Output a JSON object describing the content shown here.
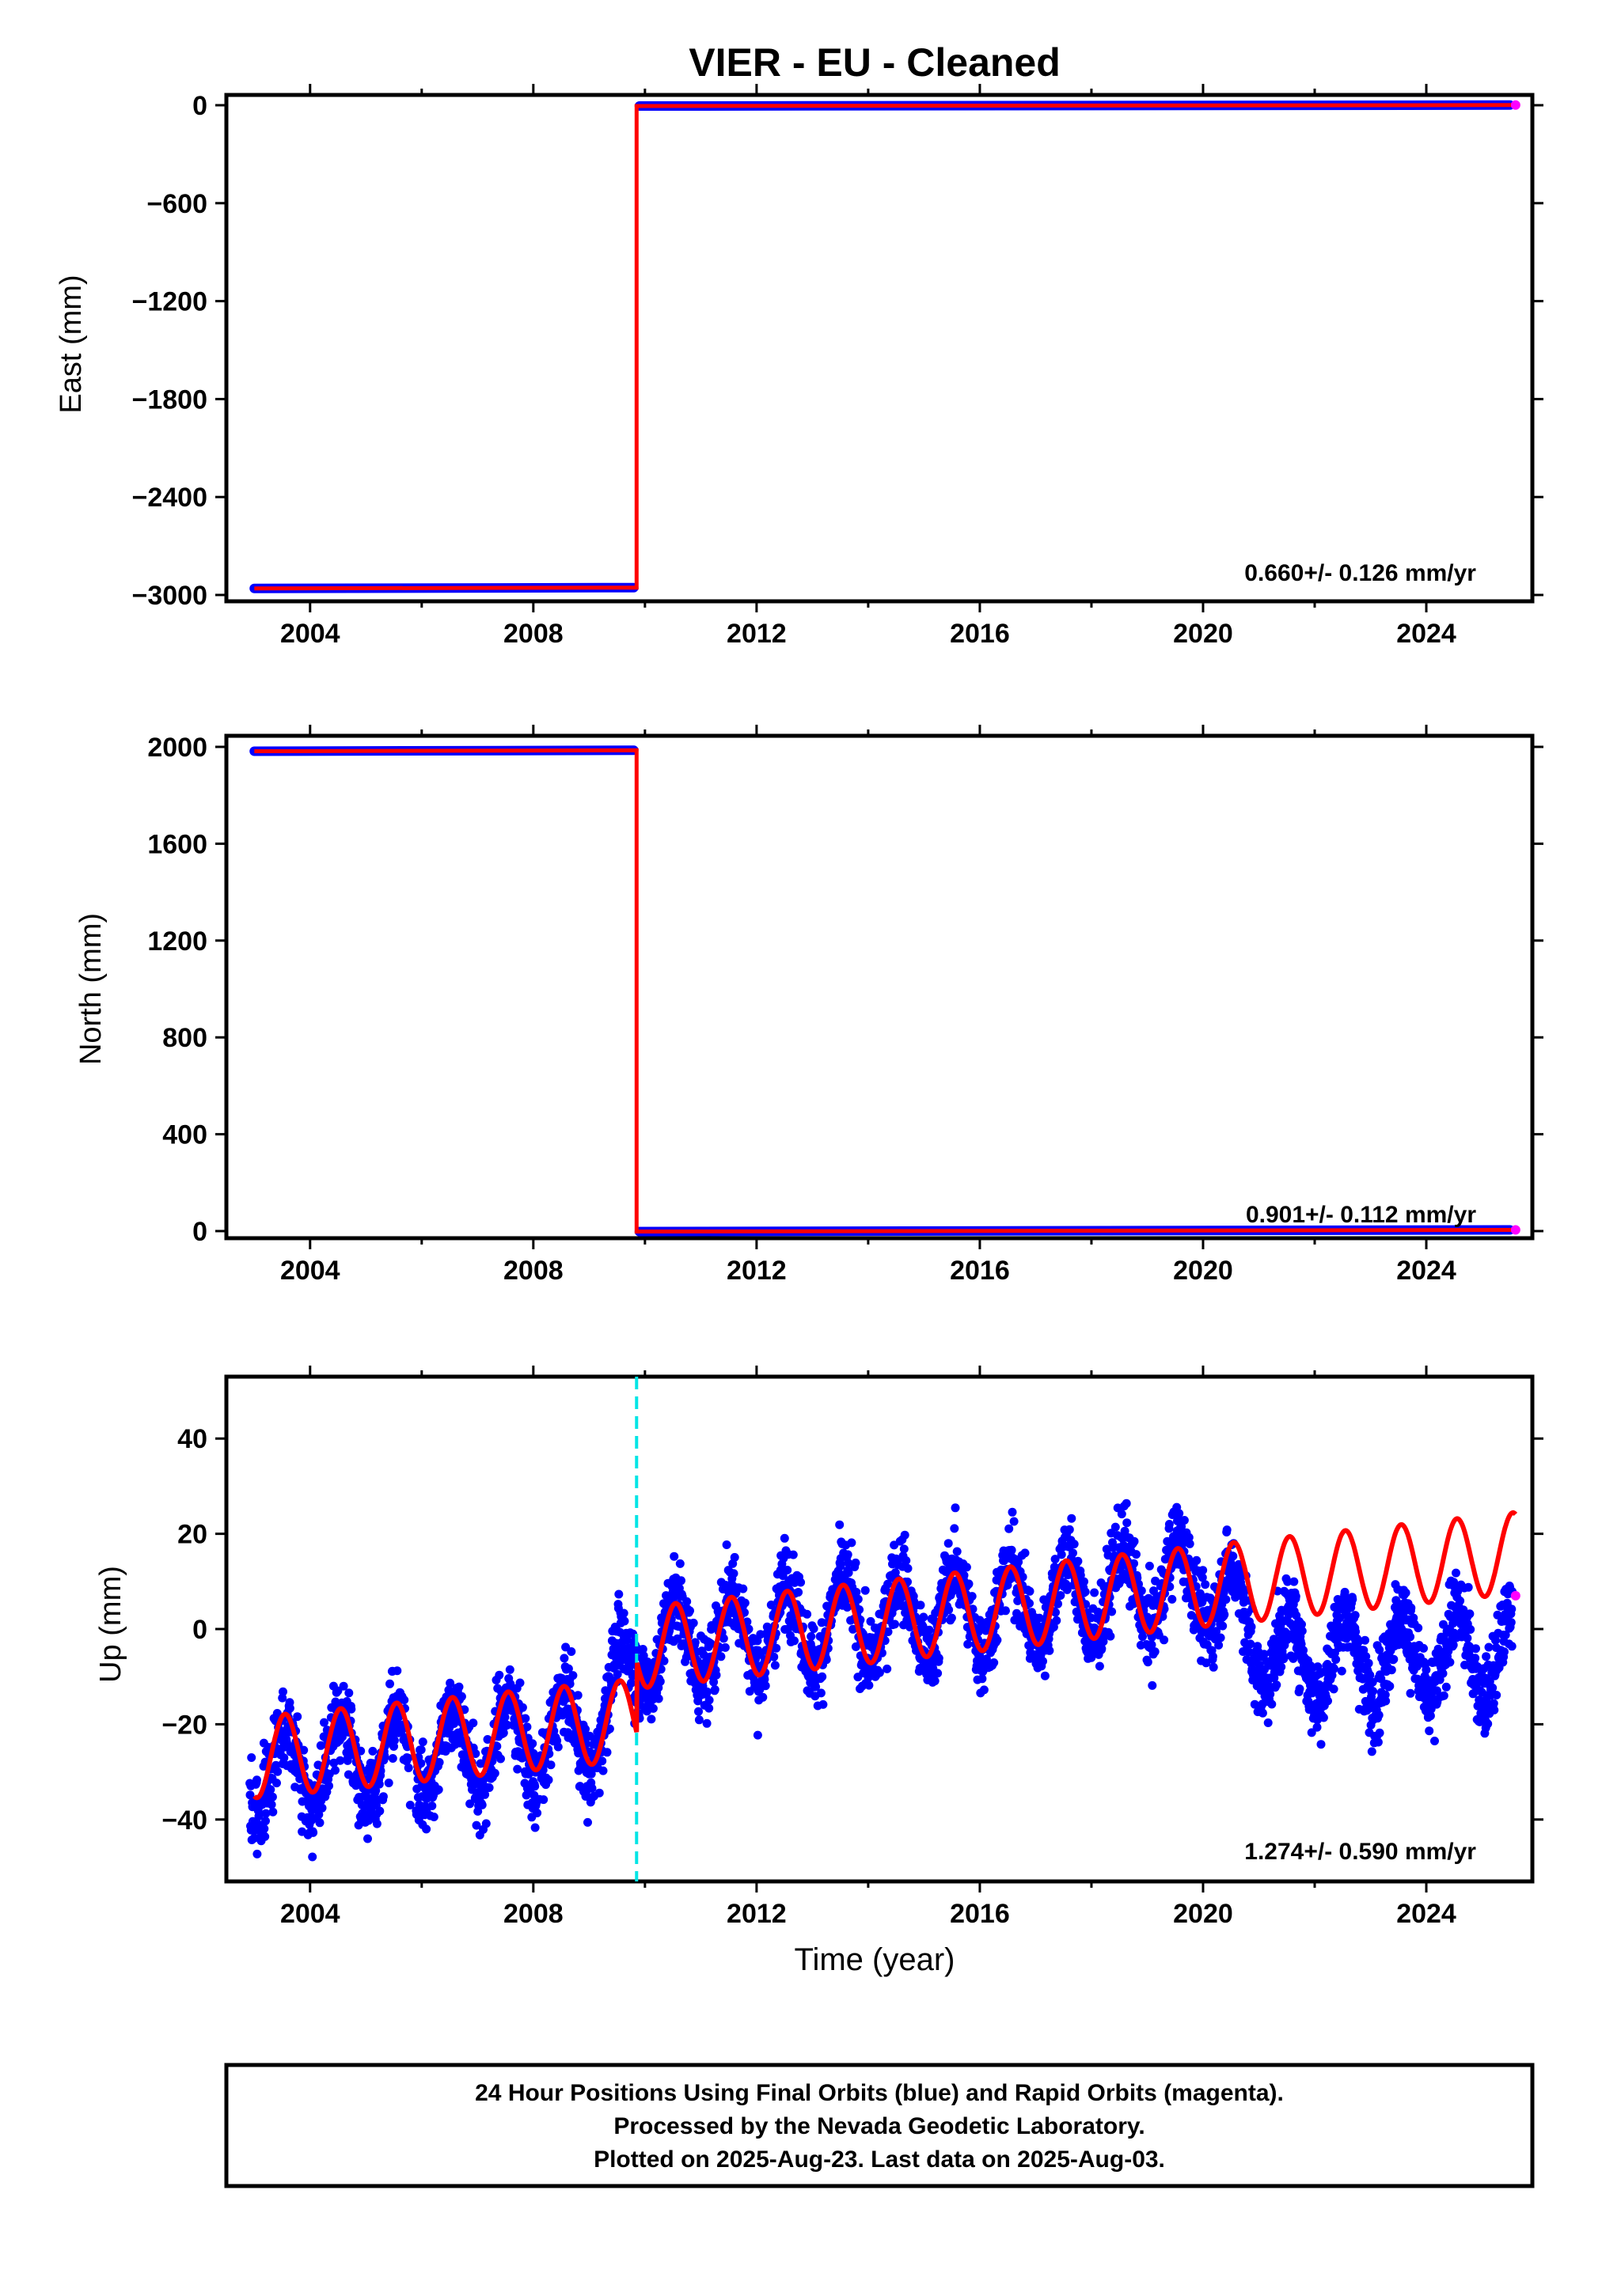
{
  "title": "VIER  - EU - Cleaned",
  "xaxis": {
    "label": "Time (year)",
    "ticks": [
      "2004",
      "2008",
      "2012",
      "2016",
      "2020",
      "2024"
    ],
    "range": [
      2002.5,
      2025.9
    ]
  },
  "colors": {
    "final": "#0000ff",
    "rapid": "#ff00ff",
    "model": "#ff0000",
    "step": "#00e5e5",
    "frame": "#000000"
  },
  "panels": [
    {
      "id": "east",
      "ylabel": "East (mm)",
      "ylim": [
        -3000,
        0
      ],
      "yticks": [
        0,
        -600,
        -1200,
        -1800,
        -2400,
        -3000
      ],
      "yticklabels": [
        "0",
        "−600",
        "−1200",
        "−1800",
        "−2400",
        "−3000"
      ],
      "rate": "0.660+/- 0.126 mm/yr"
    },
    {
      "id": "north",
      "ylabel": "North (mm)",
      "ylim": [
        0,
        2000
      ],
      "yticks": [
        0,
        400,
        800,
        1200,
        1600,
        2000
      ],
      "yticklabels": [
        "0",
        "400",
        "800",
        "1200",
        "1600",
        "2000"
      ],
      "rate": "0.901+/- 0.112 mm/yr"
    },
    {
      "id": "up",
      "ylabel": "Up (mm)",
      "ylim": [
        -53,
        53
      ],
      "yticks": [
        40,
        20,
        0,
        -20,
        -40
      ],
      "yticklabels": [
        "40",
        "20",
        "0",
        "−20",
        "−40"
      ],
      "rate": "1.274+/- 0.590 mm/yr"
    }
  ],
  "footer": {
    "line1": "24 Hour Positions Using Final Orbits (blue) and Rapid Orbits (magenta).",
    "line2": "Processed by the Nevada Geodetic Laboratory.",
    "line3": "Plotted on 2025-Aug-23. Last data on 2025-Aug-03."
  },
  "chart_data": [
    {
      "type": "scatter",
      "title": "VIER  - EU - Cleaned",
      "ylabel": "East (mm)",
      "xlabel": "",
      "xlim": [
        2002.5,
        2025.9
      ],
      "ylim": [
        -3000,
        0
      ],
      "series": [
        {
          "name": "Final Orbits (blue)",
          "x": [
            2003.0,
            2005.0,
            2007.0,
            2009.8,
            2009.9,
            2012.0,
            2016.0,
            2020.0,
            2024.0,
            2025.5
          ],
          "y": [
            -2960,
            -2958,
            -2957,
            -2955,
            -5,
            -3,
            -2,
            0,
            0,
            1
          ]
        },
        {
          "name": "Rapid Orbits (magenta)",
          "x": [
            2025.6
          ],
          "y": [
            1
          ]
        }
      ],
      "model_line": {
        "x": [
          2003.0,
          2009.85,
          2009.85,
          2025.6
        ],
        "y": [
          -2960,
          -2955,
          -5,
          1
        ]
      },
      "annotation": "0.660+/- 0.126 mm/yr"
    },
    {
      "type": "scatter",
      "ylabel": "North (mm)",
      "xlabel": "",
      "xlim": [
        2002.5,
        2025.9
      ],
      "ylim": [
        0,
        2000
      ],
      "series": [
        {
          "name": "Final Orbits (blue)",
          "x": [
            2003.0,
            2005.0,
            2007.0,
            2009.8,
            2009.9,
            2012.0,
            2016.0,
            2020.0,
            2024.0,
            2025.5
          ],
          "y": [
            1982,
            1983,
            1984,
            1986,
            -2,
            -1,
            0,
            2,
            4,
            5
          ]
        },
        {
          "name": "Rapid Orbits (magenta)",
          "x": [
            2025.6
          ],
          "y": [
            5
          ]
        }
      ],
      "model_line": {
        "x": [
          2003.0,
          2009.85,
          2009.85,
          2025.6
        ],
        "y": [
          1982,
          1986,
          -2,
          5
        ]
      },
      "annotation": "0.901+/- 0.112 mm/yr"
    },
    {
      "type": "scatter",
      "ylabel": "Up (mm)",
      "xlabel": "Time (year)",
      "xlim": [
        2002.5,
        2025.9
      ],
      "ylim": [
        -53,
        53
      ],
      "step_line_x": 2009.85,
      "series": [
        {
          "name": "Final Orbits (blue)",
          "trend": {
            "x": [
              2003.0,
              2006.0,
              2009.0,
              2010.0,
              2012.0,
              2016.0,
              2020.0,
              2021.3,
              2024.0,
              2025.5
            ],
            "y": [
              -30,
              -26,
              -22,
              -4,
              0,
              4,
              10,
              -6,
              -6,
              -5
            ]
          },
          "amplitude": 9,
          "scatter_sd": 6
        },
        {
          "name": "Rapid Orbits (magenta)",
          "x": [
            2025.6
          ],
          "y": [
            7
          ]
        }
      ],
      "model_line": {
        "trend": {
          "x": [
            2003.0,
            2009.85,
            2009.85,
            2020.0,
            2025.6
          ],
          "y": [
            -27,
            -19,
            -4,
            9,
            16
          ]
        },
        "amplitude": 8.5
      },
      "annotation": "1.274+/- 0.590 mm/yr"
    }
  ]
}
